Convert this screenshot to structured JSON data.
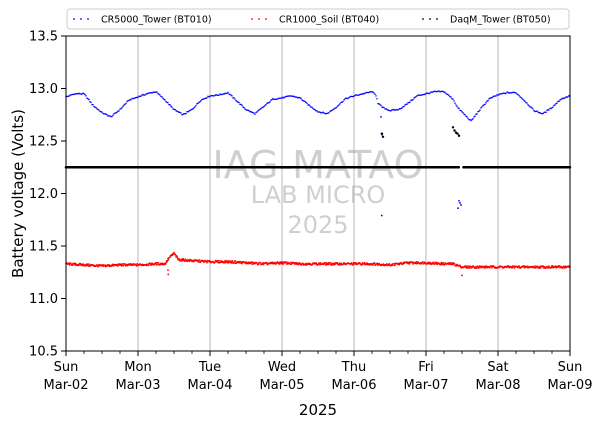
{
  "chart_data": {
    "type": "scatter",
    "ylabel": "Battery voltage (Volts)",
    "xlabel": "2025",
    "ylim": [
      10.5,
      13.5
    ],
    "xlim": [
      "2025-03-02T00:00",
      "2025-03-09T00:00"
    ],
    "yticks": [
      10.5,
      11.0,
      11.5,
      12.0,
      12.5,
      13.0,
      13.5
    ],
    "ytick_labels": [
      "10.5",
      "11.0",
      "11.5",
      "12.0",
      "12.5",
      "13.0",
      "13.5"
    ],
    "xticks": [
      {
        "day": "Sun",
        "date": "Mar-02"
      },
      {
        "day": "Mon",
        "date": "Mar-03"
      },
      {
        "day": "Tue",
        "date": "Mar-04"
      },
      {
        "day": "Wed",
        "date": "Mar-05"
      },
      {
        "day": "Thu",
        "date": "Mar-06"
      },
      {
        "day": "Fri",
        "date": "Mar-07"
      },
      {
        "day": "Sat",
        "date": "Mar-08"
      },
      {
        "day": "Sun",
        "date": "Mar-09"
      }
    ],
    "grid": "vertical",
    "legend_position": "top",
    "watermark": [
      "IAG-MATAO",
      "LAB MICRO",
      "2025"
    ],
    "series": [
      {
        "name": "CR5000_Tower (BT010)",
        "color": "#0000ff",
        "points": [
          [
            "2025-03-02T00:00",
            12.92
          ],
          [
            "2025-03-02T03:00",
            12.95
          ],
          [
            "2025-03-02T06:00",
            12.95
          ],
          [
            "2025-03-02T09:00",
            12.84
          ],
          [
            "2025-03-02T12:00",
            12.77
          ],
          [
            "2025-03-02T15:00",
            12.73
          ],
          [
            "2025-03-02T18:00",
            12.8
          ],
          [
            "2025-03-02T21:00",
            12.89
          ],
          [
            "2025-03-03T00:00",
            12.92
          ],
          [
            "2025-03-03T03:00",
            12.95
          ],
          [
            "2025-03-03T06:00",
            12.97
          ],
          [
            "2025-03-03T09:00",
            12.89
          ],
          [
            "2025-03-03T12:00",
            12.8
          ],
          [
            "2025-03-03T15:00",
            12.75
          ],
          [
            "2025-03-03T18:00",
            12.8
          ],
          [
            "2025-03-03T21:00",
            12.89
          ],
          [
            "2025-03-04T00:00",
            12.93
          ],
          [
            "2025-03-04T03:00",
            12.94
          ],
          [
            "2025-03-04T06:00",
            12.96
          ],
          [
            "2025-03-04T09:00",
            12.88
          ],
          [
            "2025-03-04T12:00",
            12.8
          ],
          [
            "2025-03-04T15:00",
            12.76
          ],
          [
            "2025-03-04T18:00",
            12.83
          ],
          [
            "2025-03-04T21:00",
            12.9
          ],
          [
            "2025-03-05T00:00",
            12.91
          ],
          [
            "2025-03-05T03:00",
            12.93
          ],
          [
            "2025-03-05T06:00",
            12.91
          ],
          [
            "2025-03-05T09:00",
            12.84
          ],
          [
            "2025-03-05T12:00",
            12.78
          ],
          [
            "2025-03-05T15:00",
            12.76
          ],
          [
            "2025-03-05T18:00",
            12.82
          ],
          [
            "2025-03-05T21:00",
            12.9
          ],
          [
            "2025-03-06T00:00",
            12.93
          ],
          [
            "2025-03-06T03:00",
            12.95
          ],
          [
            "2025-03-06T06:00",
            12.97
          ],
          [
            "2025-03-06T07:30",
            12.93
          ],
          [
            "2025-03-06T08:00",
            12.86
          ],
          [
            "2025-03-06T09:30",
            12.82
          ],
          [
            "2025-03-06T12:00",
            12.79
          ],
          [
            "2025-03-06T15:00",
            12.8
          ],
          [
            "2025-03-06T18:00",
            12.86
          ],
          [
            "2025-03-06T21:00",
            12.93
          ],
          [
            "2025-03-07T00:00",
            12.95
          ],
          [
            "2025-03-07T03:00",
            12.97
          ],
          [
            "2025-03-07T06:00",
            12.97
          ],
          [
            "2025-03-07T09:00",
            12.9
          ],
          [
            "2025-03-07T10:30",
            12.82
          ],
          [
            "2025-03-07T15:00",
            12.69
          ],
          [
            "2025-03-07T18:00",
            12.8
          ],
          [
            "2025-03-07T21:00",
            12.9
          ],
          [
            "2025-03-08T00:00",
            12.94
          ],
          [
            "2025-03-08T03:00",
            12.96
          ],
          [
            "2025-03-08T06:00",
            12.96
          ],
          [
            "2025-03-08T09:00",
            12.88
          ],
          [
            "2025-03-08T12:00",
            12.79
          ],
          [
            "2025-03-08T15:00",
            12.76
          ],
          [
            "2025-03-08T18:00",
            12.82
          ],
          [
            "2025-03-08T21:00",
            12.9
          ],
          [
            "2025-03-09T00:00",
            12.93
          ]
        ],
        "outliers": [
          [
            "2025-03-06T09:00",
            12.73
          ],
          [
            "2025-03-06T09:10",
            12.57
          ],
          [
            "2025-03-06T09:20",
            12.56
          ],
          [
            "2025-03-06T09:15",
            11.79
          ],
          [
            "2025-03-07T11:00",
            11.93
          ],
          [
            "2025-03-07T11:20",
            11.91
          ],
          [
            "2025-03-07T11:40",
            11.89
          ],
          [
            "2025-03-07T10:40",
            11.86
          ]
        ]
      },
      {
        "name": "CR1000_Soil (BT040)",
        "color": "#ff0000",
        "points": [
          [
            "2025-03-02T00:00",
            11.33
          ],
          [
            "2025-03-02T06:00",
            11.32
          ],
          [
            "2025-03-02T12:00",
            11.31
          ],
          [
            "2025-03-02T18:00",
            11.32
          ],
          [
            "2025-03-03T00:00",
            11.32
          ],
          [
            "2025-03-03T06:00",
            11.33
          ],
          [
            "2025-03-03T09:00",
            11.33
          ],
          [
            "2025-03-03T10:30",
            11.39
          ],
          [
            "2025-03-03T12:00",
            11.43
          ],
          [
            "2025-03-03T13:30",
            11.37
          ],
          [
            "2025-03-03T18:00",
            11.36
          ],
          [
            "2025-03-04T00:00",
            11.35
          ],
          [
            "2025-03-04T06:00",
            11.35
          ],
          [
            "2025-03-04T12:00",
            11.34
          ],
          [
            "2025-03-04T18:00",
            11.33
          ],
          [
            "2025-03-05T00:00",
            11.34
          ],
          [
            "2025-03-05T06:00",
            11.33
          ],
          [
            "2025-03-05T12:00",
            11.33
          ],
          [
            "2025-03-05T18:00",
            11.33
          ],
          [
            "2025-03-06T00:00",
            11.33
          ],
          [
            "2025-03-06T06:00",
            11.33
          ],
          [
            "2025-03-06T12:00",
            11.32
          ],
          [
            "2025-03-06T18:00",
            11.34
          ],
          [
            "2025-03-07T00:00",
            11.34
          ],
          [
            "2025-03-07T06:00",
            11.33
          ],
          [
            "2025-03-07T09:00",
            11.33
          ],
          [
            "2025-03-07T12:00",
            11.3
          ],
          [
            "2025-03-07T18:00",
            11.3
          ],
          [
            "2025-03-08T00:00",
            11.3
          ],
          [
            "2025-03-08T06:00",
            11.3
          ],
          [
            "2025-03-08T12:00",
            11.3
          ],
          [
            "2025-03-08T18:00",
            11.3
          ],
          [
            "2025-03-09T00:00",
            11.3
          ]
        ],
        "outliers": [
          [
            "2025-03-03T10:00",
            11.27
          ],
          [
            "2025-03-03T10:05",
            11.23
          ],
          [
            "2025-03-07T12:00",
            11.22
          ]
        ]
      },
      {
        "name": "DaqM_Tower (BT050)",
        "color": "#000000",
        "points": [
          [
            "2025-03-02T00:00",
            12.25
          ],
          [
            "2025-03-07T11:00",
            12.25
          ]
        ],
        "segment_after": [
          [
            "2025-03-07T12:30",
            12.25
          ],
          [
            "2025-03-09T00:00",
            12.25
          ]
        ],
        "outliers": [
          [
            "2025-03-06T09:00",
            12.25
          ],
          [
            "2025-03-06T09:20",
            12.57
          ],
          [
            "2025-03-06T09:40",
            12.54
          ],
          [
            "2025-03-07T09:00",
            12.63
          ],
          [
            "2025-03-07T09:30",
            12.6
          ],
          [
            "2025-03-07T10:00",
            12.58
          ],
          [
            "2025-03-07T10:30",
            12.57
          ],
          [
            "2025-03-07T11:00",
            12.55
          ]
        ]
      }
    ]
  }
}
